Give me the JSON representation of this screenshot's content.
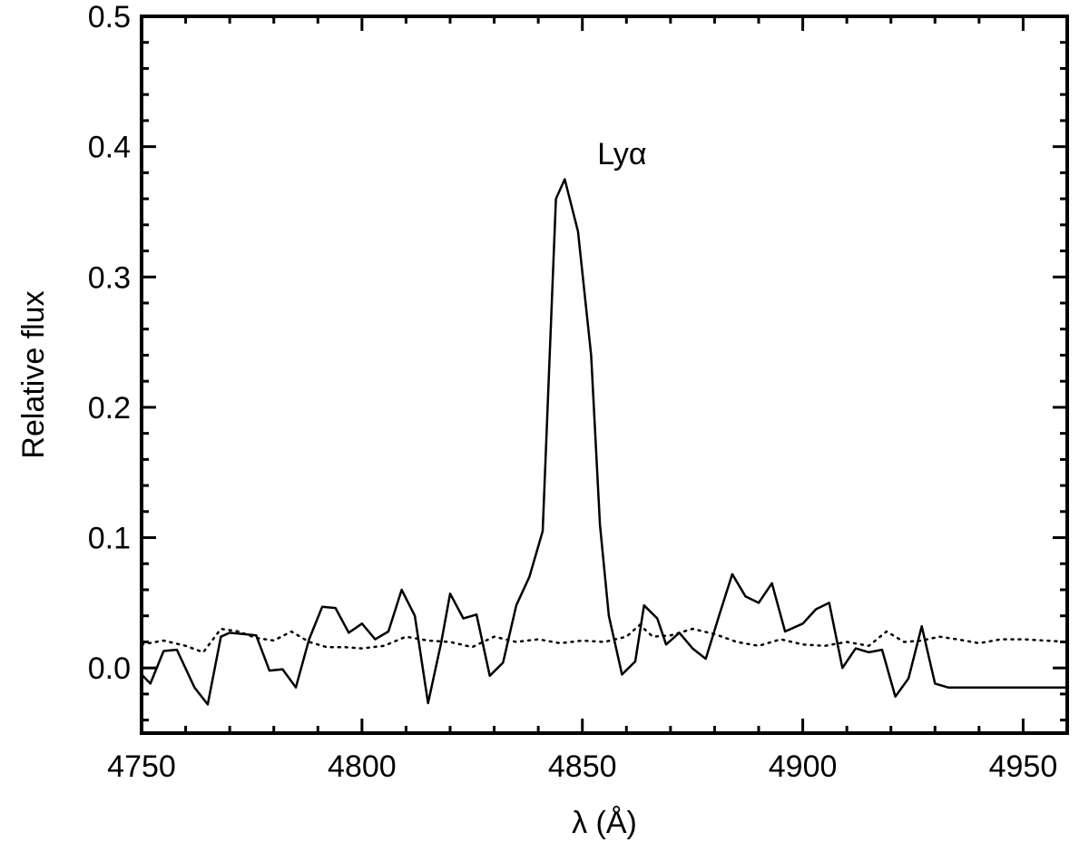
{
  "chart_data": {
    "type": "line",
    "xlabel": "λ (Å)",
    "ylabel": "Relative flux",
    "xlim": [
      4750,
      4960
    ],
    "ylim": [
      -0.05,
      0.5
    ],
    "x_ticks": [
      4750,
      4800,
      4850,
      4900,
      4950
    ],
    "x_tick_labels": [
      "4750",
      "4800",
      "4850",
      "4900",
      "4950"
    ],
    "y_ticks": [
      0.0,
      0.1,
      0.2,
      0.3,
      0.4,
      0.5
    ],
    "y_tick_labels": [
      "0.0",
      "0.1",
      "0.2",
      "0.3",
      "0.4",
      "0.5"
    ],
    "grid": false,
    "annotations": [
      {
        "text": "Lyα",
        "x": 4859,
        "y": 0.395
      }
    ],
    "series": [
      {
        "style": "solid",
        "x": [
          4750,
          4752,
          4755,
          4758,
          4762,
          4765,
          4768,
          4770,
          4773,
          4776,
          4779,
          4782,
          4785,
          4788,
          4791,
          4794,
          4797,
          4800,
          4803,
          4806,
          4809,
          4812,
          4815,
          4818,
          4820,
          4823,
          4826,
          4829,
          4832,
          4835,
          4838,
          4841,
          4844,
          4846,
          4849,
          4852,
          4854,
          4856,
          4859,
          4862,
          4864,
          4867,
          4869,
          4872,
          4875,
          4878,
          4881,
          4884,
          4887,
          4890,
          4893,
          4896,
          4900,
          4903,
          4906,
          4909,
          4912,
          4915,
          4918,
          4921,
          4924,
          4927,
          4930,
          4933,
          4936,
          4939,
          4942,
          4945,
          4948,
          4951,
          4954,
          4957,
          4960
        ],
        "y": [
          -0.005,
          -0.012,
          0.013,
          0.014,
          -0.015,
          -0.028,
          0.024,
          0.027,
          0.026,
          0.025,
          -0.002,
          -0.001,
          -0.015,
          0.022,
          0.047,
          0.046,
          0.027,
          0.034,
          0.022,
          0.028,
          0.06,
          0.04,
          -0.027,
          0.02,
          0.057,
          0.038,
          0.041,
          -0.006,
          0.004,
          0.048,
          0.07,
          0.105,
          0.36,
          0.375,
          0.335,
          0.24,
          0.11,
          0.04,
          -0.005,
          0.005,
          0.048,
          0.038,
          0.018,
          0.027,
          0.015,
          0.007,
          0.04,
          0.072,
          0.055,
          0.05,
          0.065,
          0.028,
          0.034,
          0.045,
          0.05,
          0.0,
          0.015,
          0.012,
          0.014,
          -0.022,
          -0.008,
          0.032,
          -0.012,
          -0.015,
          -0.015,
          -0.015,
          -0.015,
          -0.015,
          -0.015,
          -0.015,
          -0.015,
          -0.015,
          -0.015
        ]
      },
      {
        "style": "dotted",
        "x": [
          4750,
          4755,
          4760,
          4764,
          4768,
          4772,
          4776,
          4780,
          4784,
          4788,
          4792,
          4796,
          4800,
          4805,
          4810,
          4815,
          4820,
          4825,
          4830,
          4835,
          4840,
          4845,
          4850,
          4855,
          4860,
          4863,
          4866,
          4870,
          4875,
          4880,
          4885,
          4890,
          4895,
          4900,
          4905,
          4910,
          4915,
          4919,
          4923,
          4927,
          4931,
          4935,
          4940,
          4945,
          4950,
          4955,
          4960
        ],
        "y": [
          0.018,
          0.021,
          0.017,
          0.012,
          0.03,
          0.028,
          0.023,
          0.021,
          0.028,
          0.02,
          0.016,
          0.016,
          0.015,
          0.017,
          0.024,
          0.021,
          0.02,
          0.016,
          0.024,
          0.02,
          0.022,
          0.019,
          0.021,
          0.02,
          0.024,
          0.033,
          0.024,
          0.025,
          0.03,
          0.026,
          0.02,
          0.017,
          0.022,
          0.018,
          0.017,
          0.02,
          0.017,
          0.028,
          0.02,
          0.021,
          0.024,
          0.022,
          0.019,
          0.022,
          0.022,
          0.021,
          0.02
        ]
      }
    ]
  }
}
